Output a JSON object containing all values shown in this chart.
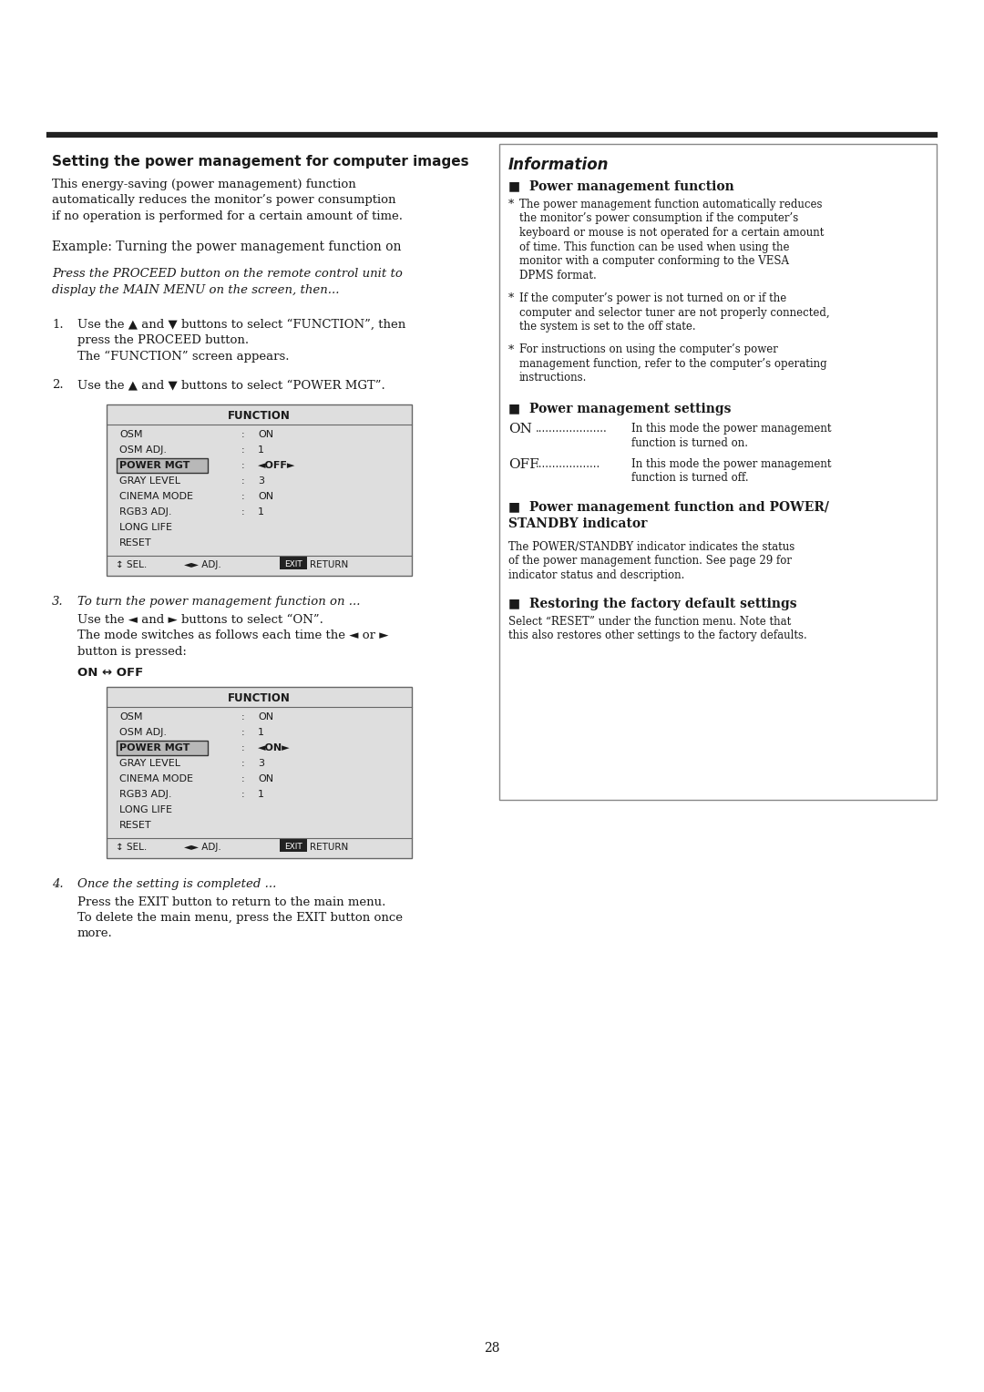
{
  "bg_color": "#ffffff",
  "text_color": "#1a1a1a",
  "page_number": "28",
  "left_column": {
    "title": "Setting the power management for computer images",
    "intro_lines": [
      "This energy-saving (power management) function",
      "automatically reduces the monitor’s power consumption",
      "if no operation is performed for a certain amount of time."
    ],
    "example_label": "Example: Turning the power management function on",
    "italic_note_lines": [
      "Press the PROCEED button on the remote control unit to",
      "display the MAIN MENU on the screen, then..."
    ],
    "step1_label": "1.",
    "step1_lines": [
      "Use the ▲ and ▼ buttons to select “FUNCTION”, then",
      "press the PROCEED button.",
      "The “FUNCTION” screen appears."
    ],
    "step2_label": "2.",
    "step2_line": "Use the ▲ and ▼ buttons to select “POWER MGT”.",
    "step3_label": "3.",
    "step3_italic": "To turn the power management function on ...",
    "step3_lines": [
      "Use the ◄ and ► buttons to select “ON”.",
      "The mode switches as follows each time the ◄ or ►",
      "button is pressed:"
    ],
    "step3_mode": "ON ↔ OFF",
    "step4_label": "4.",
    "step4_italic": "Once the setting is completed ...",
    "step4_lines": [
      "Press the EXIT button to return to the main menu.",
      "To delete the main menu, press the EXIT button once",
      "more."
    ],
    "menu1": {
      "title": "FUNCTION",
      "rows": [
        [
          "OSM",
          ":",
          "ON",
          false
        ],
        [
          "OSM ADJ.",
          ":",
          "1",
          false
        ],
        [
          "POWER MGT",
          ":",
          "◄OFF►",
          true
        ],
        [
          "GRAY LEVEL",
          ":",
          "3",
          false
        ],
        [
          "CINEMA MODE",
          ":",
          "ON",
          false
        ],
        [
          "RGB3 ADJ.",
          ":",
          "1",
          false
        ],
        [
          "LONG LIFE",
          "",
          "",
          false
        ],
        [
          "RESET",
          "",
          "",
          false
        ]
      ]
    },
    "menu2": {
      "title": "FUNCTION",
      "rows": [
        [
          "OSM",
          ":",
          "ON",
          false
        ],
        [
          "OSM ADJ.",
          ":",
          "1",
          false
        ],
        [
          "POWER MGT",
          ":",
          "◄ON►",
          true
        ],
        [
          "GRAY LEVEL",
          ":",
          "3",
          false
        ],
        [
          "CINEMA MODE",
          ":",
          "ON",
          false
        ],
        [
          "RGB3 ADJ.",
          ":",
          "1",
          false
        ],
        [
          "LONG LIFE",
          "",
          "",
          false
        ],
        [
          "RESET",
          "",
          "",
          false
        ]
      ]
    }
  },
  "right_column": {
    "info_title": "Information",
    "sec1_heading": "■  Power management function",
    "sec1_bullets": [
      [
        "The power management function automatically reduces",
        "the monitor’s power consumption if the computer’s",
        "keyboard or mouse is not operated for a certain amount",
        "of time. This function can be used when using the",
        "monitor with a computer conforming to the VESA",
        "DPMS format."
      ],
      [
        "If the computer’s power is not turned on or if the",
        "computer and selector tuner are not properly connected,",
        "the system is set to the off state."
      ],
      [
        "For instructions on using the computer’s power",
        "management function, refer to the computer’s operating",
        "instructions."
      ]
    ],
    "sec2_heading": "■  Power management settings",
    "sec2_settings": [
      {
        "label": "ON",
        "dots": ".....................",
        "desc": [
          "In this mode the power management",
          "function is turned on."
        ]
      },
      {
        "label": "OFF",
        "dots": "...................",
        "desc": [
          "In this mode the power management",
          "function is turned off."
        ]
      }
    ],
    "sec3_heading_lines": [
      "■  Power management function and POWER/",
      "STANDBY indicator"
    ],
    "sec3_body": [
      "The POWER/STANDBY indicator indicates the status",
      "of the power management function. See page 29 for",
      "indicator status and description."
    ],
    "sec4_heading": "■  Restoring the factory default settings",
    "sec4_body": [
      "Select “RESET” under the function menu. Note that",
      "this also restores other settings to the factory defaults."
    ]
  }
}
